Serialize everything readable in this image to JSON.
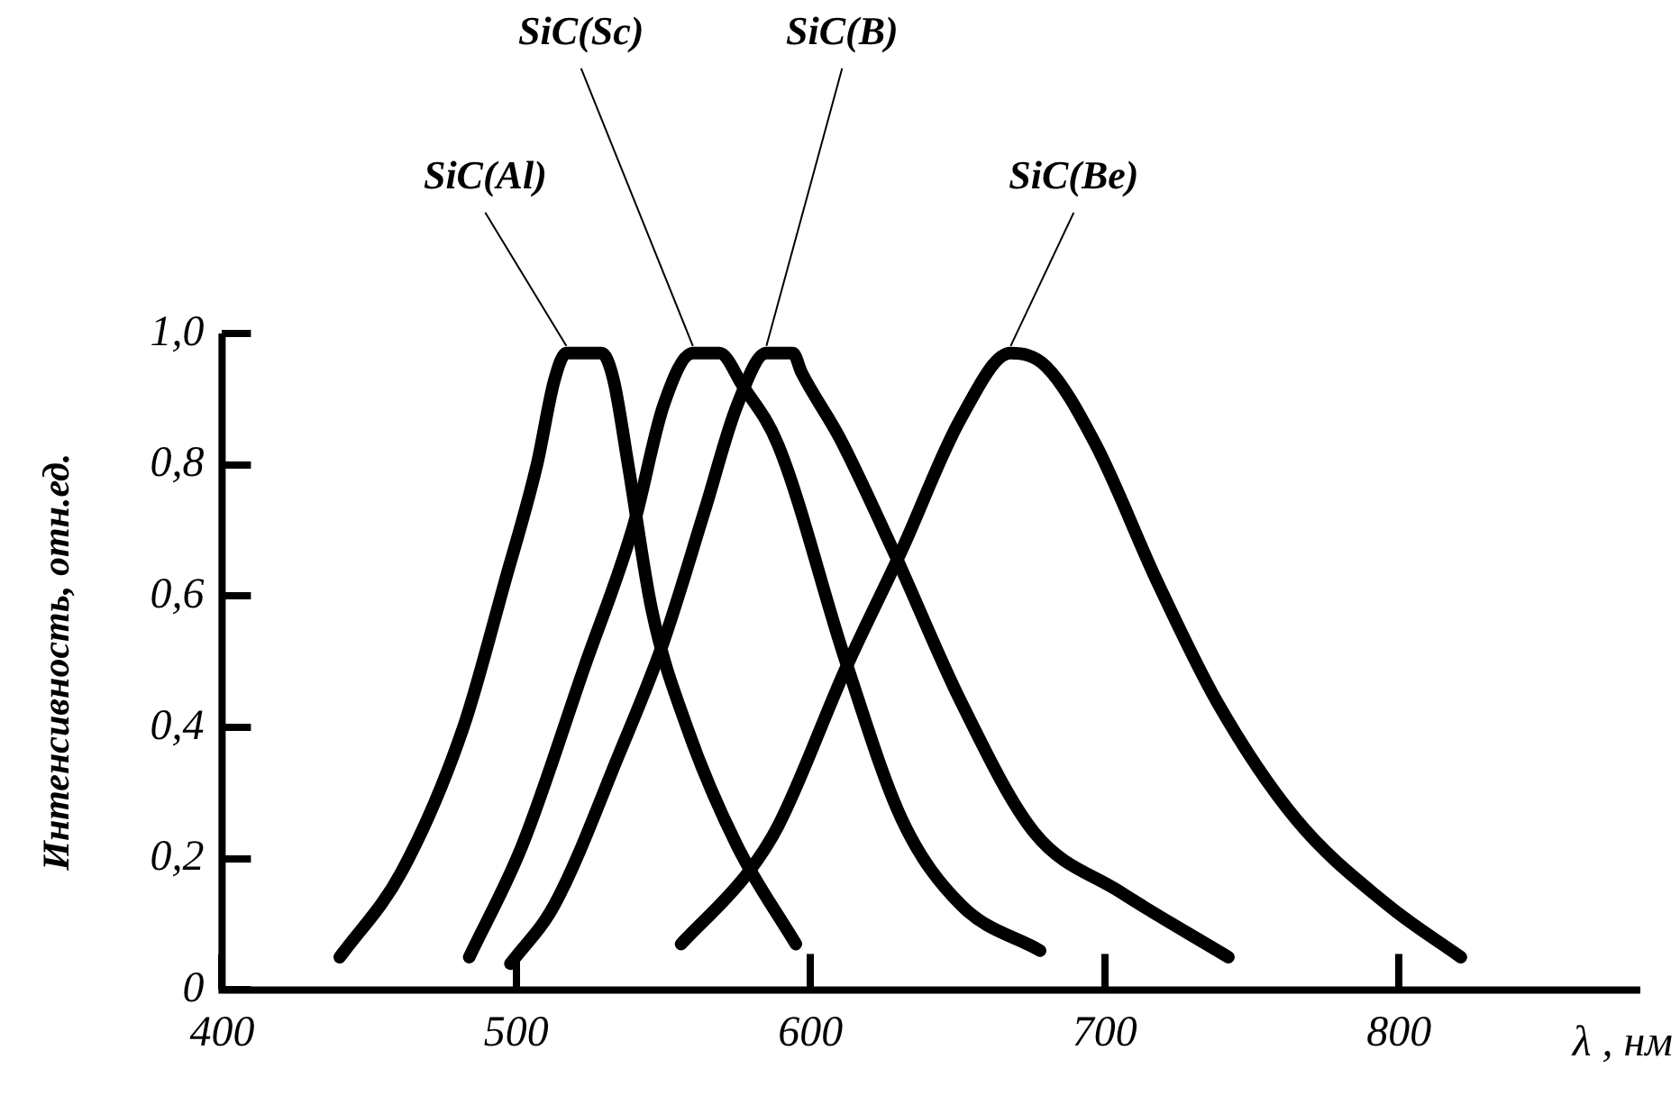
{
  "chart_data": {
    "type": "line",
    "xlabel": "λ , нм",
    "ylabel": "Интенсивность, отн.ед.",
    "xlim": [
      400,
      882
    ],
    "xticks": [
      400,
      500,
      600,
      700,
      800
    ],
    "ylim": [
      0,
      1.0
    ],
    "yticks": [
      0,
      {
        "value": 0.2,
        "label": "0,2"
      },
      {
        "value": 0.4,
        "label": "0,4"
      },
      {
        "value": 0.6,
        "label": "0,6"
      },
      {
        "value": 0.8,
        "label": "0,8"
      },
      {
        "value": 1.0,
        "label": "1,0"
      }
    ],
    "grid": false,
    "legend": false,
    "marker": "none",
    "line_style": "solid",
    "series": [
      {
        "name": "SiC(Al)",
        "color": "#000000",
        "x": [
          440,
          461,
          482,
          496,
          507,
          513,
          517,
          529,
          533,
          538,
          546,
          558,
          575,
          595
        ],
        "values": [
          0.05,
          0.18,
          0.4,
          0.62,
          0.8,
          0.93,
          0.97,
          0.97,
          0.93,
          0.8,
          0.58,
          0.4,
          0.22,
          0.07
        ]
      },
      {
        "name": "SiC(Sc)",
        "color": "#000000",
        "x": [
          484,
          502,
          523,
          540,
          550,
          560,
          569,
          577,
          589,
          612,
          631,
          651,
          678
        ],
        "values": [
          0.05,
          0.22,
          0.49,
          0.71,
          0.89,
          0.97,
          0.97,
          0.92,
          0.83,
          0.5,
          0.26,
          0.13,
          0.06
        ]
      },
      {
        "name": "SiC(B)",
        "color": "#000000",
        "x": [
          498,
          513,
          535,
          550,
          564,
          575,
          585,
          594,
          597,
          610,
          628,
          651,
          676,
          705,
          742
        ],
        "values": [
          0.04,
          0.13,
          0.36,
          0.53,
          0.73,
          0.89,
          0.97,
          0.97,
          0.94,
          0.84,
          0.67,
          0.44,
          0.24,
          0.15,
          0.05
        ]
      },
      {
        "name": "SiC(Be)",
        "color": "#000000",
        "x": [
          556,
          579,
          589,
          612,
          631,
          651,
          668,
          680,
          697,
          718,
          738,
          765,
          796,
          821
        ],
        "values": [
          0.07,
          0.18,
          0.25,
          0.49,
          0.67,
          0.87,
          0.97,
          0.95,
          0.83,
          0.62,
          0.44,
          0.26,
          0.13,
          0.05
        ]
      }
    ]
  }
}
